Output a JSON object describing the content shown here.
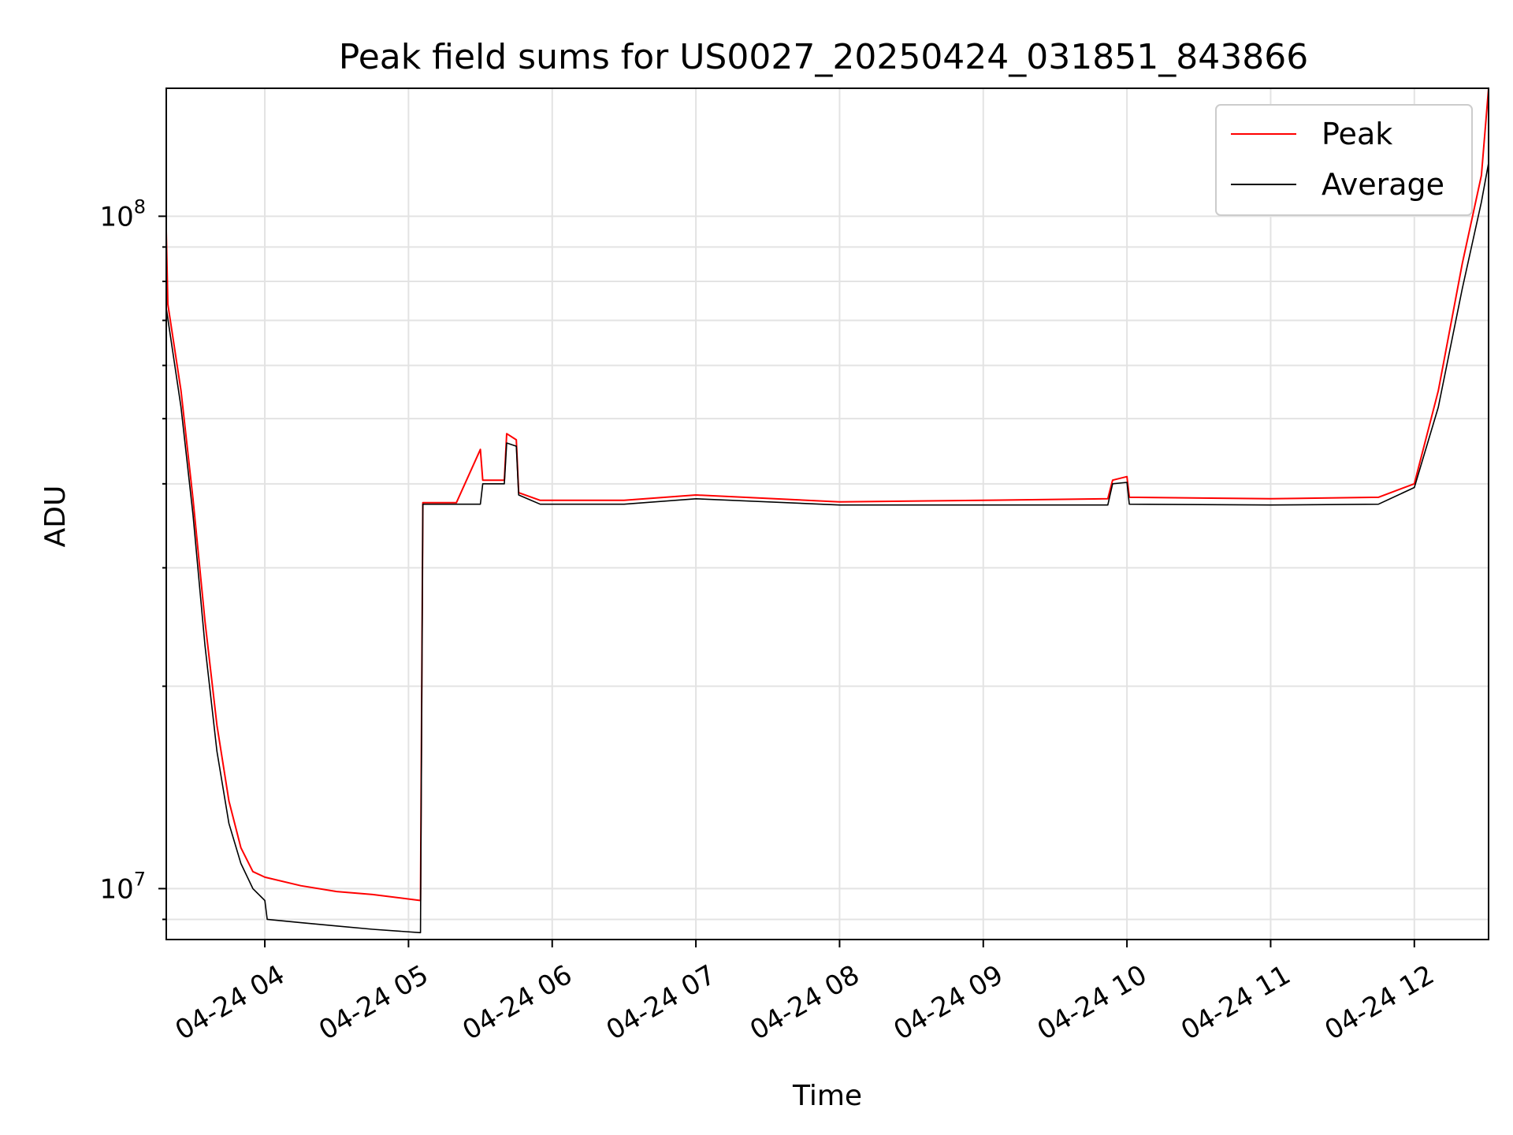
{
  "chart_data": {
    "type": "line",
    "title": "Peak field sums for US0027_20250424_031851_843866",
    "xlabel": "Time",
    "ylabel": "ADU",
    "y_scale": "log",
    "ylim": [
      8400000,
      155000000
    ],
    "xlim": [
      "2025-04-24 03:18:51",
      "2025-04-24 12:31:00"
    ],
    "grid": true,
    "legend_position": "top-right",
    "x_ticks": [
      "2025-04-24 04:00",
      "2025-04-24 05:00",
      "2025-04-24 06:00",
      "2025-04-24 07:00",
      "2025-04-24 08:00",
      "2025-04-24 09:00",
      "2025-04-24 10:00",
      "2025-04-24 11:00",
      "2025-04-24 12:00"
    ],
    "x_tick_labels": [
      "04-24 04",
      "04-24 05",
      "04-24 06",
      "04-24 07",
      "04-24 08",
      "04-24 09",
      "04-24 10",
      "04-24 11",
      "04-24 12"
    ],
    "y_tick_labels": [
      {
        "value": 10000000,
        "base": "10",
        "exp": "7"
      },
      {
        "value": 100000000,
        "base": "10",
        "exp": "8"
      }
    ],
    "series": [
      {
        "name": "Peak",
        "color": "#ff0000",
        "points": [
          [
            "2025-04-24 03:18:51",
            95000000
          ],
          [
            "2025-04-24 03:19:30",
            74000000
          ],
          [
            "2025-04-24 03:25",
            55000000
          ],
          [
            "2025-04-24 03:30",
            38000000
          ],
          [
            "2025-04-24 03:35",
            25000000
          ],
          [
            "2025-04-24 03:40",
            17500000
          ],
          [
            "2025-04-24 03:45",
            13500000
          ],
          [
            "2025-04-24 03:50",
            11500000
          ],
          [
            "2025-04-24 03:55",
            10600000
          ],
          [
            "2025-04-24 04:00",
            10400000
          ],
          [
            "2025-04-24 04:15",
            10100000
          ],
          [
            "2025-04-24 04:30",
            9900000
          ],
          [
            "2025-04-24 04:45",
            9800000
          ],
          [
            "2025-04-24 05:05",
            9600000
          ],
          [
            "2025-04-24 05:06",
            37500000
          ],
          [
            "2025-04-24 05:20",
            37500000
          ],
          [
            "2025-04-24 05:30",
            45000000
          ],
          [
            "2025-04-24 05:31",
            40500000
          ],
          [
            "2025-04-24 05:40",
            40500000
          ],
          [
            "2025-04-24 05:41",
            47500000
          ],
          [
            "2025-04-24 05:45",
            46500000
          ],
          [
            "2025-04-24 05:46",
            38800000
          ],
          [
            "2025-04-24 05:55",
            37800000
          ],
          [
            "2025-04-24 06:30",
            37800000
          ],
          [
            "2025-04-24 07:00",
            38500000
          ],
          [
            "2025-04-24 08:00",
            37600000
          ],
          [
            "2025-04-24 09:00",
            37800000
          ],
          [
            "2025-04-24 09:52",
            38000000
          ],
          [
            "2025-04-24 09:54",
            40500000
          ],
          [
            "2025-04-24 10:00",
            41000000
          ],
          [
            "2025-04-24 10:01",
            38200000
          ],
          [
            "2025-04-24 11:00",
            38000000
          ],
          [
            "2025-04-24 11:45",
            38200000
          ],
          [
            "2025-04-24 12:00",
            40000000
          ],
          [
            "2025-04-24 12:10",
            55000000
          ],
          [
            "2025-04-24 12:20",
            85000000
          ],
          [
            "2025-04-24 12:28",
            115000000
          ],
          [
            "2025-04-24 12:31",
            155000000
          ]
        ]
      },
      {
        "name": "Average",
        "color": "#000000",
        "points": [
          [
            "2025-04-24 03:18:51",
            73000000
          ],
          [
            "2025-04-24 03:25",
            52000000
          ],
          [
            "2025-04-24 03:30",
            36000000
          ],
          [
            "2025-04-24 03:35",
            23000000
          ],
          [
            "2025-04-24 03:40",
            16000000
          ],
          [
            "2025-04-24 03:45",
            12500000
          ],
          [
            "2025-04-24 03:50",
            10900000
          ],
          [
            "2025-04-24 03:55",
            10000000
          ],
          [
            "2025-04-24 04:00",
            9600000
          ],
          [
            "2025-04-24 04:01",
            9000000
          ],
          [
            "2025-04-24 04:15",
            8900000
          ],
          [
            "2025-04-24 04:30",
            8800000
          ],
          [
            "2025-04-24 04:45",
            8700000
          ],
          [
            "2025-04-24 05:05",
            8600000
          ],
          [
            "2025-04-24 05:06",
            37300000
          ],
          [
            "2025-04-24 05:30",
            37300000
          ],
          [
            "2025-04-24 05:31",
            40000000
          ],
          [
            "2025-04-24 05:40",
            40000000
          ],
          [
            "2025-04-24 05:41",
            46000000
          ],
          [
            "2025-04-24 05:45",
            45500000
          ],
          [
            "2025-04-24 05:46",
            38500000
          ],
          [
            "2025-04-24 05:55",
            37300000
          ],
          [
            "2025-04-24 06:30",
            37300000
          ],
          [
            "2025-04-24 07:00",
            38000000
          ],
          [
            "2025-04-24 08:00",
            37200000
          ],
          [
            "2025-04-24 09:00",
            37200000
          ],
          [
            "2025-04-24 09:52",
            37200000
          ],
          [
            "2025-04-24 09:54",
            40000000
          ],
          [
            "2025-04-24 10:00",
            40200000
          ],
          [
            "2025-04-24 10:01",
            37300000
          ],
          [
            "2025-04-24 11:00",
            37200000
          ],
          [
            "2025-04-24 11:45",
            37300000
          ],
          [
            "2025-04-24 12:00",
            39500000
          ],
          [
            "2025-04-24 12:10",
            52000000
          ],
          [
            "2025-04-24 12:20",
            78000000
          ],
          [
            "2025-04-24 12:28",
            105000000
          ],
          [
            "2025-04-24 12:31",
            120000000
          ]
        ]
      }
    ]
  }
}
